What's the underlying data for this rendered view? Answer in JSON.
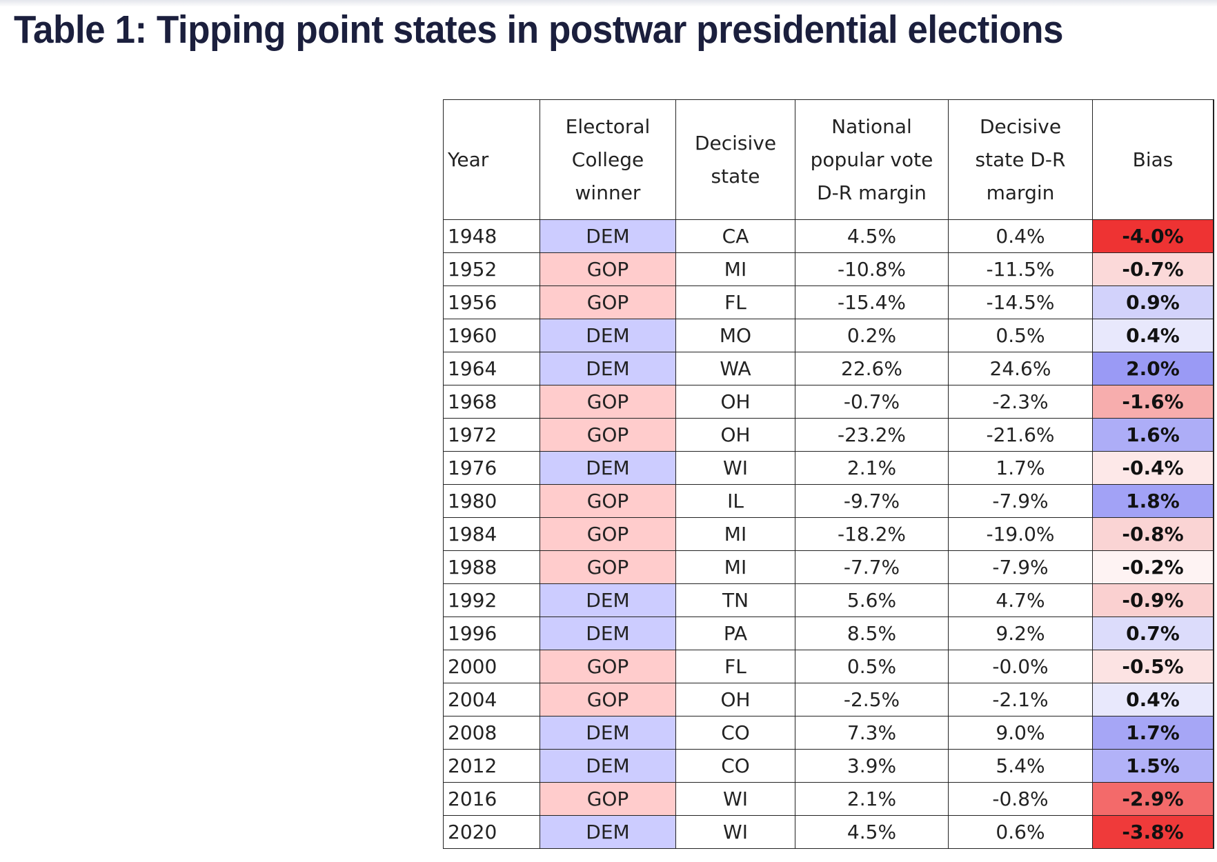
{
  "title": "Table 1: Tipping point states in postwar presidential elections",
  "columns": {
    "year": "Year",
    "winner": [
      "Electoral",
      "College",
      "winner"
    ],
    "state": [
      "Decisive",
      "state"
    ],
    "national": [
      "National",
      "popular vote",
      "D-R margin"
    ],
    "decisive": [
      "Decisive",
      "state D-R",
      "margin"
    ],
    "bias": "Bias"
  },
  "colors": {
    "dem": "#ccccff",
    "gop": "#ffcccc"
  },
  "rows": [
    {
      "year": "1948",
      "winner": "DEM",
      "state": "CA",
      "national": "4.5%",
      "decisive": "0.4%",
      "bias": "-4.0%",
      "bias_color": "#ee3333"
    },
    {
      "year": "1952",
      "winner": "GOP",
      "state": "MI",
      "national": "-10.8%",
      "decisive": "-11.5%",
      "bias": "-0.7%",
      "bias_color": "#fbd9d9"
    },
    {
      "year": "1956",
      "winner": "GOP",
      "state": "FL",
      "national": "-15.4%",
      "decisive": "-14.5%",
      "bias": "0.9%",
      "bias_color": "#d2d2fb"
    },
    {
      "year": "1960",
      "winner": "DEM",
      "state": "MO",
      "national": "0.2%",
      "decisive": "0.5%",
      "bias": "0.4%",
      "bias_color": "#e8e8fc"
    },
    {
      "year": "1964",
      "winner": "DEM",
      "state": "WA",
      "national": "22.6%",
      "decisive": "24.6%",
      "bias": "2.0%",
      "bias_color": "#9a9af5"
    },
    {
      "year": "1968",
      "winner": "GOP",
      "state": "OH",
      "national": "-0.7%",
      "decisive": "-2.3%",
      "bias": "-1.6%",
      "bias_color": "#f7adad"
    },
    {
      "year": "1972",
      "winner": "GOP",
      "state": "OH",
      "national": "-23.2%",
      "decisive": "-21.6%",
      "bias": "1.6%",
      "bias_color": "#adadf7"
    },
    {
      "year": "1976",
      "winner": "DEM",
      "state": "WI",
      "national": "2.1%",
      "decisive": "1.7%",
      "bias": "-0.4%",
      "bias_color": "#fde8e8"
    },
    {
      "year": "1980",
      "winner": "GOP",
      "state": "IL",
      "national": "-9.7%",
      "decisive": "-7.9%",
      "bias": "1.8%",
      "bias_color": "#a2a2f6"
    },
    {
      "year": "1984",
      "winner": "GOP",
      "state": "MI",
      "national": "-18.2%",
      "decisive": "-19.0%",
      "bias": "-0.8%",
      "bias_color": "#fad4d4"
    },
    {
      "year": "1988",
      "winner": "GOP",
      "state": "MI",
      "national": "-7.7%",
      "decisive": "-7.9%",
      "bias": "-0.2%",
      "bias_color": "#fef3f3"
    },
    {
      "year": "1992",
      "winner": "DEM",
      "state": "TN",
      "national": "5.6%",
      "decisive": "4.7%",
      "bias": "-0.9%",
      "bias_color": "#fad0d0"
    },
    {
      "year": "1996",
      "winner": "DEM",
      "state": "PA",
      "national": "8.5%",
      "decisive": "9.2%",
      "bias": "0.7%",
      "bias_color": "#dcdcfb"
    },
    {
      "year": "2000",
      "winner": "GOP",
      "state": "FL",
      "national": "0.5%",
      "decisive": "-0.0%",
      "bias": "-0.5%",
      "bias_color": "#fce3e3"
    },
    {
      "year": "2004",
      "winner": "GOP",
      "state": "OH",
      "national": "-2.5%",
      "decisive": "-2.1%",
      "bias": "0.4%",
      "bias_color": "#e8e8fc"
    },
    {
      "year": "2008",
      "winner": "DEM",
      "state": "CO",
      "national": "7.3%",
      "decisive": "9.0%",
      "bias": "1.7%",
      "bias_color": "#a6a6f6"
    },
    {
      "year": "2012",
      "winner": "DEM",
      "state": "CO",
      "national": "3.9%",
      "decisive": "5.4%",
      "bias": "1.5%",
      "bias_color": "#b2b2f8"
    },
    {
      "year": "2016",
      "winner": "GOP",
      "state": "WI",
      "national": "2.1%",
      "decisive": "-0.8%",
      "bias": "-2.9%",
      "bias_color": "#f36a6a"
    },
    {
      "year": "2020",
      "winner": "DEM",
      "state": "WI",
      "national": "4.5%",
      "decisive": "0.6%",
      "bias": "-3.8%",
      "bias_color": "#ef3a3a"
    }
  ]
}
